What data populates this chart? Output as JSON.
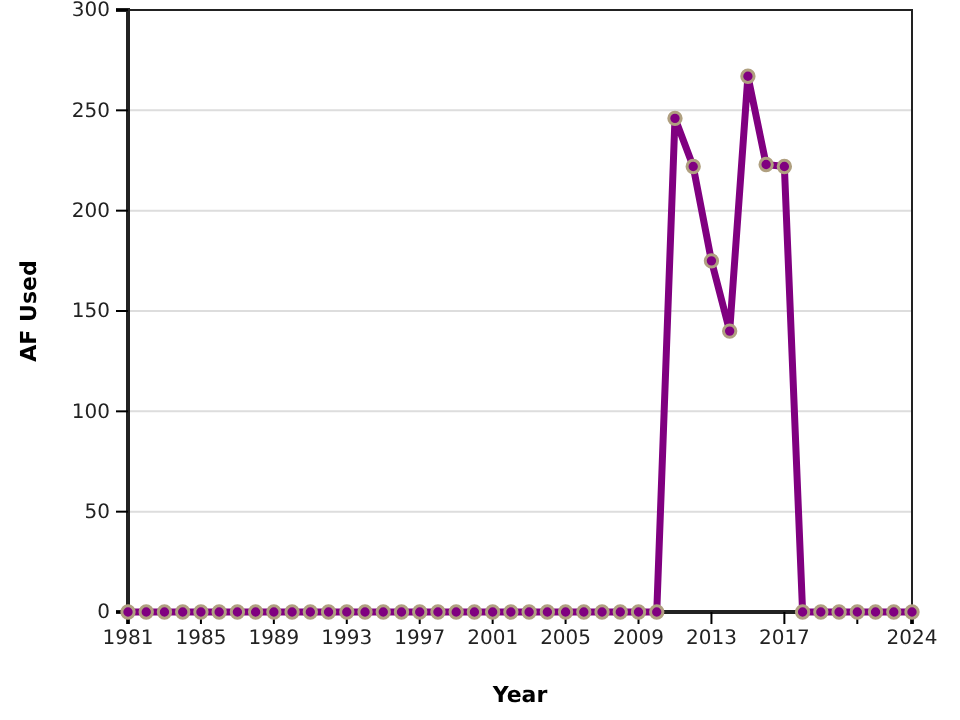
{
  "chart_data": {
    "type": "line",
    "xlabel": "Year",
    "ylabel": "AF Used",
    "x": [
      1981,
      1982,
      1983,
      1984,
      1985,
      1986,
      1987,
      1988,
      1989,
      1990,
      1991,
      1992,
      1993,
      1994,
      1995,
      1996,
      1997,
      1998,
      1999,
      2000,
      2001,
      2002,
      2003,
      2004,
      2005,
      2006,
      2007,
      2008,
      2009,
      2010,
      2011,
      2012,
      2013,
      2014,
      2015,
      2016,
      2017,
      2018,
      2019,
      2020,
      2021,
      2022,
      2023,
      2024
    ],
    "series": [
      {
        "color": "#800080",
        "values": [
          0,
          0,
          0,
          0,
          0,
          0,
          0,
          0,
          0,
          0,
          0,
          0,
          0,
          0,
          0,
          0,
          0,
          0,
          0,
          0,
          0,
          0,
          0,
          0,
          0,
          0,
          0,
          0,
          0,
          0,
          246,
          222,
          175,
          140,
          267,
          223,
          222,
          0,
          0,
          0,
          0,
          0,
          0,
          0
        ]
      }
    ],
    "xlim": [
      1981,
      2024
    ],
    "xticks": [
      1981,
      1985,
      1989,
      1993,
      1997,
      2001,
      2005,
      2009,
      2013,
      2017,
      {
        "value": 2021,
        "label": null
      },
      2024
    ],
    "ylim": [
      0,
      300
    ],
    "yticks": [
      0,
      50,
      100,
      150,
      200,
      250,
      300
    ],
    "grid": "y",
    "marker": "circle",
    "line_style": "solid"
  }
}
